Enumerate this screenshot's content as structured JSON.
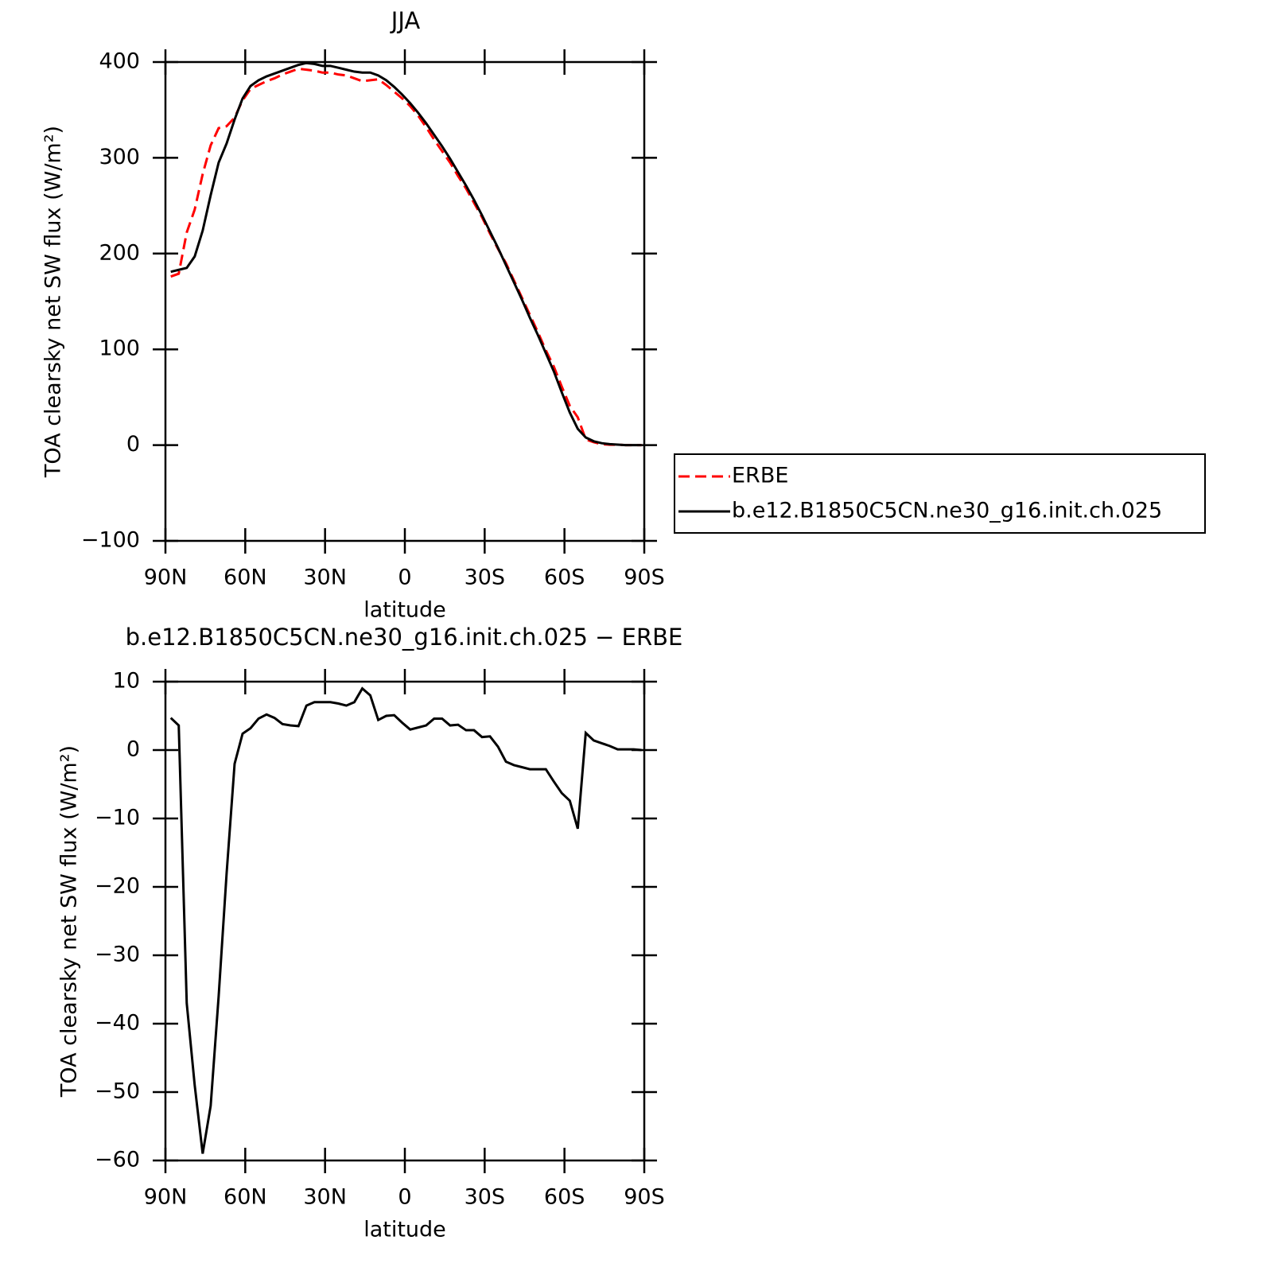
{
  "chart_data": [
    {
      "type": "line",
      "title": "JJA",
      "ylabel": "TOA clearsky net SW flux (W/m²)",
      "xlabel": "latitude",
      "x": [
        88,
        85,
        82,
        79,
        76,
        73,
        70,
        67,
        64,
        61,
        58,
        55,
        52,
        49,
        46,
        43,
        40,
        37,
        34,
        31,
        28,
        25,
        22,
        19,
        16,
        13,
        10,
        7,
        4,
        1,
        -2,
        -5,
        -8,
        -11,
        -14,
        -17,
        -20,
        -23,
        -26,
        -29,
        -32,
        -35,
        -38,
        -41,
        -44,
        -47,
        -50,
        -53,
        -56,
        -59,
        -62,
        -65,
        -68,
        -71,
        -74,
        -77,
        -80,
        -83,
        -86,
        -89
      ],
      "series": [
        {
          "name": "ERBE",
          "color": "#ff0000",
          "style": "dashed",
          "values": [
            176,
            179,
            222,
            246,
            283,
            313,
            331,
            333,
            342,
            360,
            372,
            376,
            380,
            383,
            387,
            390,
            393,
            392,
            391,
            389,
            389,
            387,
            386,
            383,
            380,
            381,
            382,
            376,
            369,
            362,
            354,
            344,
            332,
            319,
            307,
            295,
            281,
            268,
            253,
            238,
            221,
            205,
            190,
            172,
            154,
            136,
            118,
            99,
            82,
            61,
            41,
            29,
            6,
            3,
            1,
            0.4,
            0.4,
            0,
            0,
            0
          ]
        },
        {
          "name": "b.e12.B1850C5CN.ne30_g16.init.ch.025",
          "color": "#000000",
          "style": "solid",
          "values": [
            181,
            183,
            185,
            197,
            224,
            261,
            295,
            315,
            340,
            362,
            375,
            381,
            385,
            388,
            391,
            394,
            397,
            399,
            398,
            396,
            396,
            394,
            392,
            390,
            389,
            389,
            386,
            381,
            374,
            366,
            357,
            347,
            336,
            324,
            312,
            299,
            285,
            271,
            256,
            240,
            223,
            206,
            188,
            170,
            152,
            133,
            115,
            96,
            77,
            55,
            34,
            17,
            8,
            4,
            2,
            1,
            0.5,
            0,
            0,
            0
          ]
        }
      ],
      "xlim": [
        90,
        -90
      ],
      "xticks": [
        {
          "value": 90,
          "label": "90N"
        },
        {
          "value": 60,
          "label": "60N"
        },
        {
          "value": 30,
          "label": "30N"
        },
        0,
        {
          "value": -30,
          "label": "30S"
        },
        {
          "value": -60,
          "label": "60S"
        },
        {
          "value": -90,
          "label": "90S"
        }
      ],
      "ylim": [
        -100,
        400
      ],
      "yticks": [
        {
          "value": -100,
          "label": "−100"
        },
        0,
        100,
        200,
        300,
        400
      ],
      "legend": "right"
    },
    {
      "type": "line",
      "title": "b.e12.B1850C5CN.ne30_g16.init.ch.025 − ERBE",
      "ylabel": "TOA clearsky net SW flux (W/m²)",
      "xlabel": "latitude",
      "x": [
        88,
        85,
        82,
        79,
        76,
        73,
        70,
        67,
        64,
        61,
        58,
        55,
        52,
        49,
        46,
        43,
        40,
        37,
        34,
        31,
        28,
        25,
        22,
        19,
        16,
        13,
        10,
        7,
        4,
        1,
        -2,
        -5,
        -8,
        -11,
        -14,
        -17,
        -20,
        -23,
        -26,
        -29,
        -32,
        -35,
        -38,
        -41,
        -44,
        -47,
        -50,
        -53,
        -56,
        -59,
        -62,
        -65,
        -68,
        -71,
        -74,
        -77,
        -80,
        -83,
        -86,
        -89
      ],
      "values": [
        4.7,
        3.6,
        -37,
        -49,
        -59,
        -52,
        -36,
        -18,
        -2,
        2.4,
        3.2,
        4.6,
        5.2,
        4.7,
        3.8,
        3.6,
        3.5,
        6.5,
        7,
        7,
        7,
        6.8,
        6.5,
        7,
        9,
        8,
        4.4,
        5,
        5.1,
        4,
        3,
        3.3,
        3.6,
        4.6,
        4.6,
        3.6,
        3.7,
        2.9,
        2.9,
        1.9,
        2,
        0.5,
        -1.7,
        -2.2,
        -2.5,
        -2.8,
        -2.8,
        -2.8,
        -4.6,
        -6.3,
        -7.4,
        -11.5,
        2.5,
        1.4,
        1,
        0.6,
        0.1,
        0.1,
        0.1,
        0
      ],
      "color": "#000000",
      "xlim": [
        90,
        -90
      ],
      "xticks": [
        {
          "value": 90,
          "label": "90N"
        },
        {
          "value": 60,
          "label": "60N"
        },
        {
          "value": 30,
          "label": "30N"
        },
        0,
        {
          "value": -30,
          "label": "30S"
        },
        {
          "value": -60,
          "label": "60S"
        },
        {
          "value": -90,
          "label": "90S"
        }
      ],
      "ylim": [
        -60,
        10
      ],
      "yticks": [
        {
          "value": -60,
          "label": "−60"
        },
        {
          "value": -50,
          "label": "−50"
        },
        {
          "value": -40,
          "label": "−40"
        },
        {
          "value": -30,
          "label": "−30"
        },
        {
          "value": -20,
          "label": "−20"
        },
        {
          "value": -10,
          "label": "−10"
        },
        0,
        10
      ]
    }
  ]
}
